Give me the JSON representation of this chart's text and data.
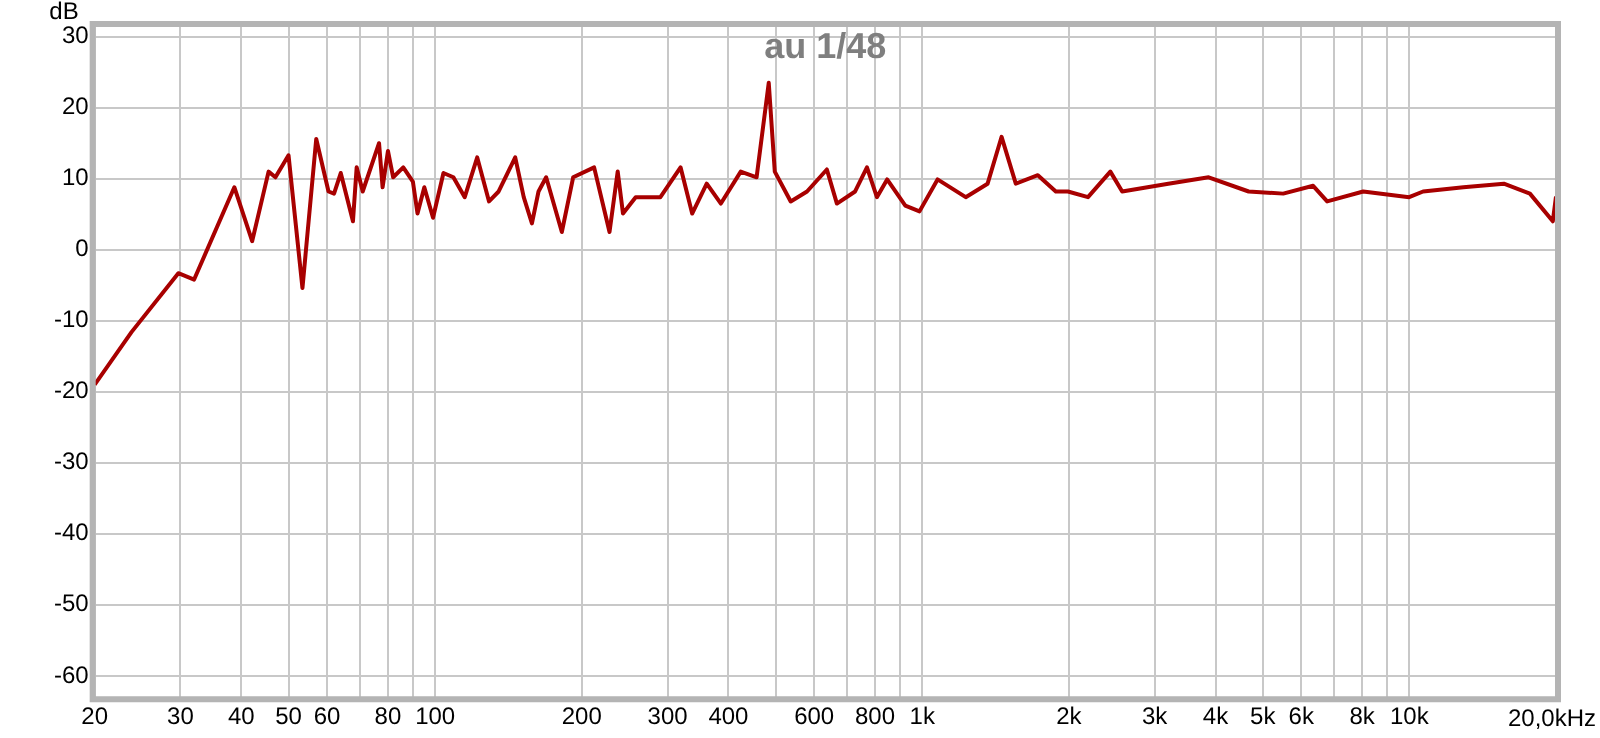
{
  "chart_data": {
    "type": "line",
    "title": "au 1/48",
    "ylabel": "dB",
    "log": "x",
    "grid": true,
    "legend": false,
    "marker": "none",
    "line_style": "solid",
    "xlim": [
      20,
      20000
    ],
    "ylim": [
      -63,
      31.5
    ],
    "xticks": [
      20,
      30,
      40,
      50,
      60,
      {
        "value": 70,
        "label": null
      },
      80,
      {
        "value": 90,
        "label": null
      },
      100,
      200,
      300,
      400,
      {
        "value": 500,
        "label": null
      },
      600,
      {
        "value": 700,
        "label": null
      },
      800,
      {
        "value": 900,
        "label": null
      },
      {
        "value": 1000,
        "label": "1k"
      },
      {
        "value": 2000,
        "label": "2k"
      },
      {
        "value": 3000,
        "label": "3k"
      },
      {
        "value": 4000,
        "label": "4k"
      },
      {
        "value": 5000,
        "label": "5k"
      },
      {
        "value": 6000,
        "label": "6k"
      },
      {
        "value": 7000,
        "label": null
      },
      {
        "value": 8000,
        "label": "8k"
      },
      {
        "value": 9000,
        "label": null
      },
      {
        "value": 10000,
        "label": "10k"
      },
      {
        "value": 20000,
        "label": null
      }
    ],
    "xlabel": "20,0kHz",
    "yticks": [
      -60,
      -50,
      -40,
      -30,
      -20,
      -10,
      0,
      10,
      20,
      30
    ],
    "series": [
      {
        "color": "#a80000",
        "x": [
          20,
          23.8,
          29.7,
          32,
          38.7,
          42.1,
          45.5,
          47,
          50,
          53.4,
          57,
          60.4,
          62,
          64,
          67.8,
          69,
          71,
          76.7,
          78,
          80,
          82,
          86,
          90,
          92,
          95,
          99,
          104,
          109,
          115,
          122,
          129,
          135,
          146,
          152,
          158,
          163,
          169,
          182,
          192,
          212,
          228,
          237,
          243,
          258,
          290,
          319,
          337,
          361,
          386,
          424,
          457,
          484,
          498,
          537,
          580,
          637,
          668,
          728,
          770,
          807,
          847,
          923,
          987,
          1075,
          1228,
          1362,
          1455,
          1556,
          1727,
          1880,
          1991,
          2189,
          2433,
          2573,
          3200,
          3872,
          4678,
          5508,
          6345,
          6780,
          8040,
          9990,
          10670,
          12910,
          15630,
          17680,
          19700,
          20000
        ],
        "values": [
          -19,
          -11.6,
          -3.3,
          -4.2,
          8.8,
          1.2,
          11,
          10.2,
          13.3,
          -5.4,
          15.6,
          8.2,
          7.9,
          10.8,
          4,
          11.6,
          8.2,
          15,
          8.8,
          13.9,
          10.2,
          11.6,
          9.6,
          5.1,
          8.8,
          4.5,
          10.8,
          10.2,
          7.4,
          13,
          6.8,
          8.2,
          13,
          7.4,
          3.7,
          8.2,
          10.2,
          2.5,
          10.2,
          11.6,
          2.5,
          11,
          5.1,
          7.4,
          7.4,
          11.6,
          5.1,
          9.3,
          6.5,
          11,
          10.2,
          23.5,
          11,
          6.8,
          8.2,
          11.3,
          6.5,
          8.2,
          11.6,
          7.4,
          9.9,
          6.2,
          5.4,
          9.9,
          7.4,
          9.3,
          15.9,
          9.3,
          10.5,
          8.2,
          8.2,
          7.4,
          11,
          8.2,
          9.3,
          10.2,
          8.2,
          7.9,
          9,
          6.8,
          8.2,
          7.4,
          8.2,
          8.8,
          9.3,
          7.9,
          4,
          7.5
        ]
      }
    ]
  }
}
